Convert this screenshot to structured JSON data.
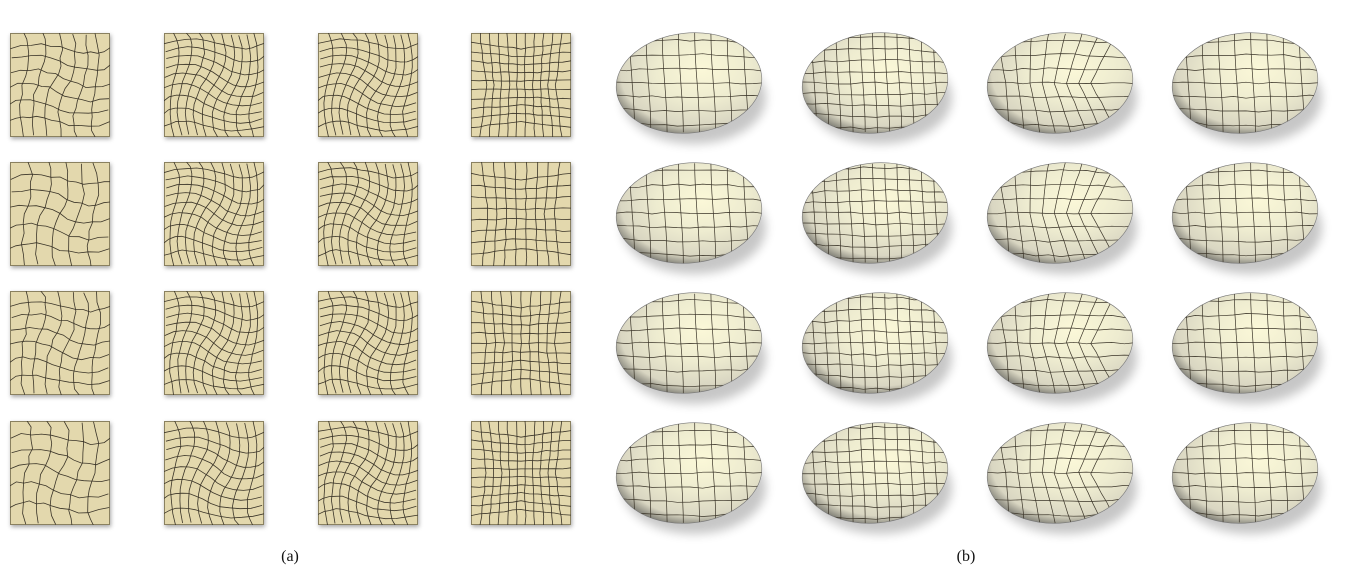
{
  "figure": {
    "panels": [
      {
        "caption": "(a)",
        "rows": 4,
        "cols": 4,
        "shape": "square-patch"
      },
      {
        "caption": "(b)",
        "rows": 4,
        "cols": 4,
        "shape": "ellipsoid-bowl"
      }
    ]
  },
  "colors": {
    "patch_fill": "#e3d8ad",
    "patch_border": "#8a8160",
    "mesh_line": "#3a3428",
    "bowl_light": "#fbf8d8",
    "bowl_mid": "#d9d6c2",
    "bowl_dark": "#5d5d58"
  }
}
